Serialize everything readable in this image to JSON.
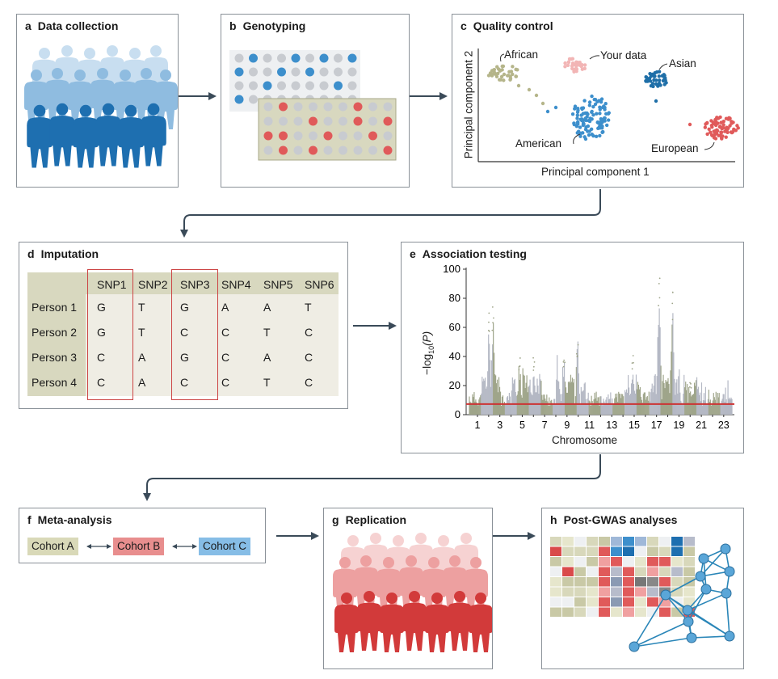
{
  "panels": {
    "a": {
      "letter": "a",
      "title": "Data collection"
    },
    "b": {
      "letter": "b",
      "title": "Genotyping"
    },
    "c": {
      "letter": "c",
      "title": "Quality control"
    },
    "d": {
      "letter": "d",
      "title": "Imputation"
    },
    "e": {
      "letter": "e",
      "title": "Association testing"
    },
    "f": {
      "letter": "f",
      "title": "Meta-analysis"
    },
    "g": {
      "letter": "g",
      "title": "Replication"
    },
    "h": {
      "letter": "h",
      "title": "Post-GWAS analyses"
    }
  },
  "quality_control": {
    "xlabel": "Principal component 1",
    "ylabel": "Principal component 2",
    "groups": {
      "african": "African",
      "your_data": "Your data",
      "asian": "Asian",
      "american": "American",
      "european": "European"
    },
    "colors": {
      "african": "#b5b58a",
      "your_data": "#f2b5b5",
      "asian": "#1f6fa8",
      "american": "#3d8fcc",
      "european": "#e05a5a"
    }
  },
  "imputation": {
    "headers": [
      "SNP1",
      "SNP2",
      "SNP3",
      "SNP4",
      "SNP5",
      "SNP6"
    ],
    "rows": [
      {
        "person": "Person 1",
        "values": [
          "G",
          "T",
          "G",
          "A",
          "A",
          "T"
        ]
      },
      {
        "person": "Person 2",
        "values": [
          "G",
          "T",
          "C",
          "C",
          "T",
          "C"
        ]
      },
      {
        "person": "Person 3",
        "values": [
          "C",
          "A",
          "G",
          "C",
          "A",
          "C"
        ]
      },
      {
        "person": "Person 4",
        "values": [
          "C",
          "A",
          "C",
          "C",
          "T",
          "C"
        ]
      }
    ]
  },
  "chart_data": {
    "type": "scatter",
    "title": "Association testing",
    "xlabel": "Chromosome",
    "ylabel": "−log10(P)",
    "ylabel_base": "−log",
    "ylabel_sub": "10",
    "ylabel_tail": "(P)",
    "ylim": [
      0,
      100
    ],
    "yticks": [
      "0",
      "20",
      "40",
      "60",
      "80",
      "100"
    ],
    "xticks": [
      "1",
      "3",
      "5",
      "7",
      "9",
      "11",
      "13",
      "15",
      "17",
      "19",
      "23"
    ],
    "extra_xticks": [
      "21"
    ],
    "threshold": 7.3,
    "peaks": [
      {
        "x": 0.075,
        "y": 70
      },
      {
        "x": 0.09,
        "y": 75
      },
      {
        "x": 0.19,
        "y": 42
      },
      {
        "x": 0.245,
        "y": 40
      },
      {
        "x": 0.36,
        "y": 45
      },
      {
        "x": 0.41,
        "y": 50
      },
      {
        "x": 0.72,
        "y": 95
      },
      {
        "x": 0.77,
        "y": 92
      },
      {
        "x": 0.62,
        "y": 42
      },
      {
        "x": 0.84,
        "y": 22
      }
    ],
    "colors": {
      "a": "#9fa58a",
      "b": "#b4b8c4",
      "threshold": "#cc3333"
    }
  },
  "meta_analysis": {
    "cohorts": [
      "Cohort A",
      "Cohort B",
      "Cohort C"
    ],
    "colors": [
      "#d9d9b8",
      "#e88e8e",
      "#86bde6"
    ]
  },
  "colors": {
    "border": "#8a9198",
    "arrow": "#3a4a58",
    "blue_dark": "#1e6fb0",
    "blue_light": "#b9d7ee",
    "red_dark": "#d23a3a",
    "red_light": "#f4c0c0",
    "plate_gray": "#c8cbd0",
    "olive_bg": "#d8d8bf",
    "table_bg": "#efede4"
  }
}
